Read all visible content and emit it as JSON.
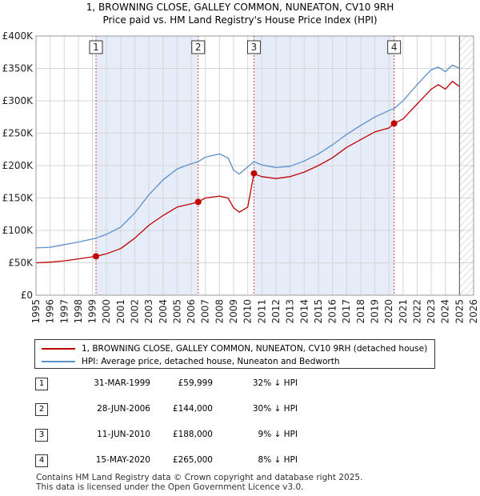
{
  "title": {
    "line1": "1, BROWNING CLOSE, GALLEY COMMON, NUNEATON, CV10 9RH",
    "line2": "Price paid vs. HM Land Registry's House Price Index (HPI)"
  },
  "colors": {
    "price_line": "#c00000",
    "hpi_line": "#5b8fd0",
    "shade": "#e6ecf8",
    "grid": "#d6d6d6",
    "marker_line": "#cc4444"
  },
  "chart_data": {
    "type": "line",
    "title": "1, BROWNING CLOSE, GALLEY COMMON, NUNEATON, CV10 9RH — Price paid vs. HM Land Registry's House Price Index (HPI)",
    "xlabel": "",
    "ylabel": "",
    "xlim": [
      1995,
      2026
    ],
    "ylim": [
      0,
      400000
    ],
    "x_ticks": [
      1995,
      1996,
      1997,
      1998,
      1999,
      2000,
      2001,
      2002,
      2003,
      2004,
      2005,
      2006,
      2007,
      2008,
      2009,
      2010,
      2011,
      2012,
      2013,
      2014,
      2015,
      2016,
      2017,
      2018,
      2019,
      2020,
      2021,
      2022,
      2023,
      2024,
      2025,
      2026
    ],
    "y_ticks": [
      {
        "value": 0,
        "label": "£0"
      },
      {
        "value": 50000,
        "label": "£50K"
      },
      {
        "value": 100000,
        "label": "£100K"
      },
      {
        "value": 150000,
        "label": "£150K"
      },
      {
        "value": 200000,
        "label": "£200K"
      },
      {
        "value": 250000,
        "label": "£250K"
      },
      {
        "value": 300000,
        "label": "£300K"
      },
      {
        "value": 350000,
        "label": "£350K"
      },
      {
        "value": 400000,
        "label": "£400K"
      }
    ],
    "grid": true,
    "shaded_ranges": [
      [
        1999.25,
        2006.49
      ],
      [
        2010.44,
        2020.37
      ]
    ],
    "future_hatch_from": 2025.0,
    "series": [
      {
        "name": "1, BROWNING CLOSE, GALLEY COMMON, NUNEATON, CV10 9RH (detached house)",
        "color": "#c00000",
        "x": [
          1995.0,
          1996.0,
          1997.0,
          1998.0,
          1999.25,
          2000.0,
          2001.0,
          2002.0,
          2003.0,
          2004.0,
          2005.0,
          2006.0,
          2006.49,
          2007.0,
          2008.0,
          2008.6,
          2009.0,
          2009.4,
          2010.0,
          2010.44,
          2010.6,
          2011.0,
          2012.0,
          2013.0,
          2014.0,
          2015.0,
          2016.0,
          2017.0,
          2018.0,
          2019.0,
          2020.0,
          2020.37,
          2021.0,
          2022.0,
          2023.0,
          2023.5,
          2024.0,
          2024.5,
          2025.0
        ],
        "y": [
          50000,
          51000,
          53000,
          56000,
          59999,
          64000,
          72000,
          88000,
          108000,
          123000,
          136000,
          141000,
          144000,
          150000,
          153000,
          150000,
          135000,
          128000,
          136000,
          188000,
          186000,
          183000,
          180000,
          183000,
          190000,
          200000,
          212000,
          228000,
          240000,
          252000,
          258000,
          265000,
          272000,
          295000,
          318000,
          325000,
          318000,
          330000,
          322000
        ]
      },
      {
        "name": "HPI: Average price, detached house, Nuneaton and Bedworth",
        "color": "#5b8fd0",
        "x": [
          1995.0,
          1996.0,
          1997.0,
          1998.0,
          1999.25,
          2000.0,
          2001.0,
          2002.0,
          2003.0,
          2004.0,
          2005.0,
          2006.0,
          2006.49,
          2007.0,
          2008.0,
          2008.6,
          2009.0,
          2009.4,
          2010.0,
          2010.44,
          2011.0,
          2012.0,
          2013.0,
          2014.0,
          2015.0,
          2016.0,
          2017.0,
          2018.0,
          2019.0,
          2020.0,
          2020.37,
          2021.0,
          2022.0,
          2023.0,
          2023.5,
          2024.0,
          2024.5,
          2025.0
        ],
        "y": [
          73000,
          74000,
          78000,
          82000,
          88000,
          94000,
          105000,
          127000,
          155000,
          178000,
          195000,
          203000,
          206000,
          213000,
          218000,
          212000,
          193000,
          187000,
          198000,
          206000,
          201000,
          197000,
          199000,
          207000,
          218000,
          232000,
          248000,
          262000,
          275000,
          285000,
          288000,
          300000,
          325000,
          348000,
          352000,
          345000,
          355000,
          350000
        ]
      }
    ],
    "sale_markers": [
      {
        "label": "1",
        "x": 1999.25,
        "y": 59999
      },
      {
        "label": "2",
        "x": 2006.49,
        "y": 144000
      },
      {
        "label": "3",
        "x": 2010.44,
        "y": 188000
      },
      {
        "label": "4",
        "x": 2020.37,
        "y": 265000
      }
    ]
  },
  "legend": {
    "property": "1, BROWNING CLOSE, GALLEY COMMON, NUNEATON, CV10 9RH (detached house)",
    "hpi": "HPI: Average price, detached house, Nuneaton and Bedworth"
  },
  "sales": [
    {
      "num": "1",
      "date": "31-MAR-1999",
      "price": "£59,999",
      "hpi": "32% ↓ HPI"
    },
    {
      "num": "2",
      "date": "28-JUN-2006",
      "price": "£144,000",
      "hpi": "30% ↓ HPI"
    },
    {
      "num": "3",
      "date": "11-JUN-2010",
      "price": "£188,000",
      "hpi": "9% ↓ HPI"
    },
    {
      "num": "4",
      "date": "15-MAY-2020",
      "price": "£265,000",
      "hpi": "8% ↓ HPI"
    }
  ],
  "footer": {
    "line1": "Contains HM Land Registry data © Crown copyright and database right 2025.",
    "line2": "This data is licensed under the Open Government Licence v3.0."
  }
}
